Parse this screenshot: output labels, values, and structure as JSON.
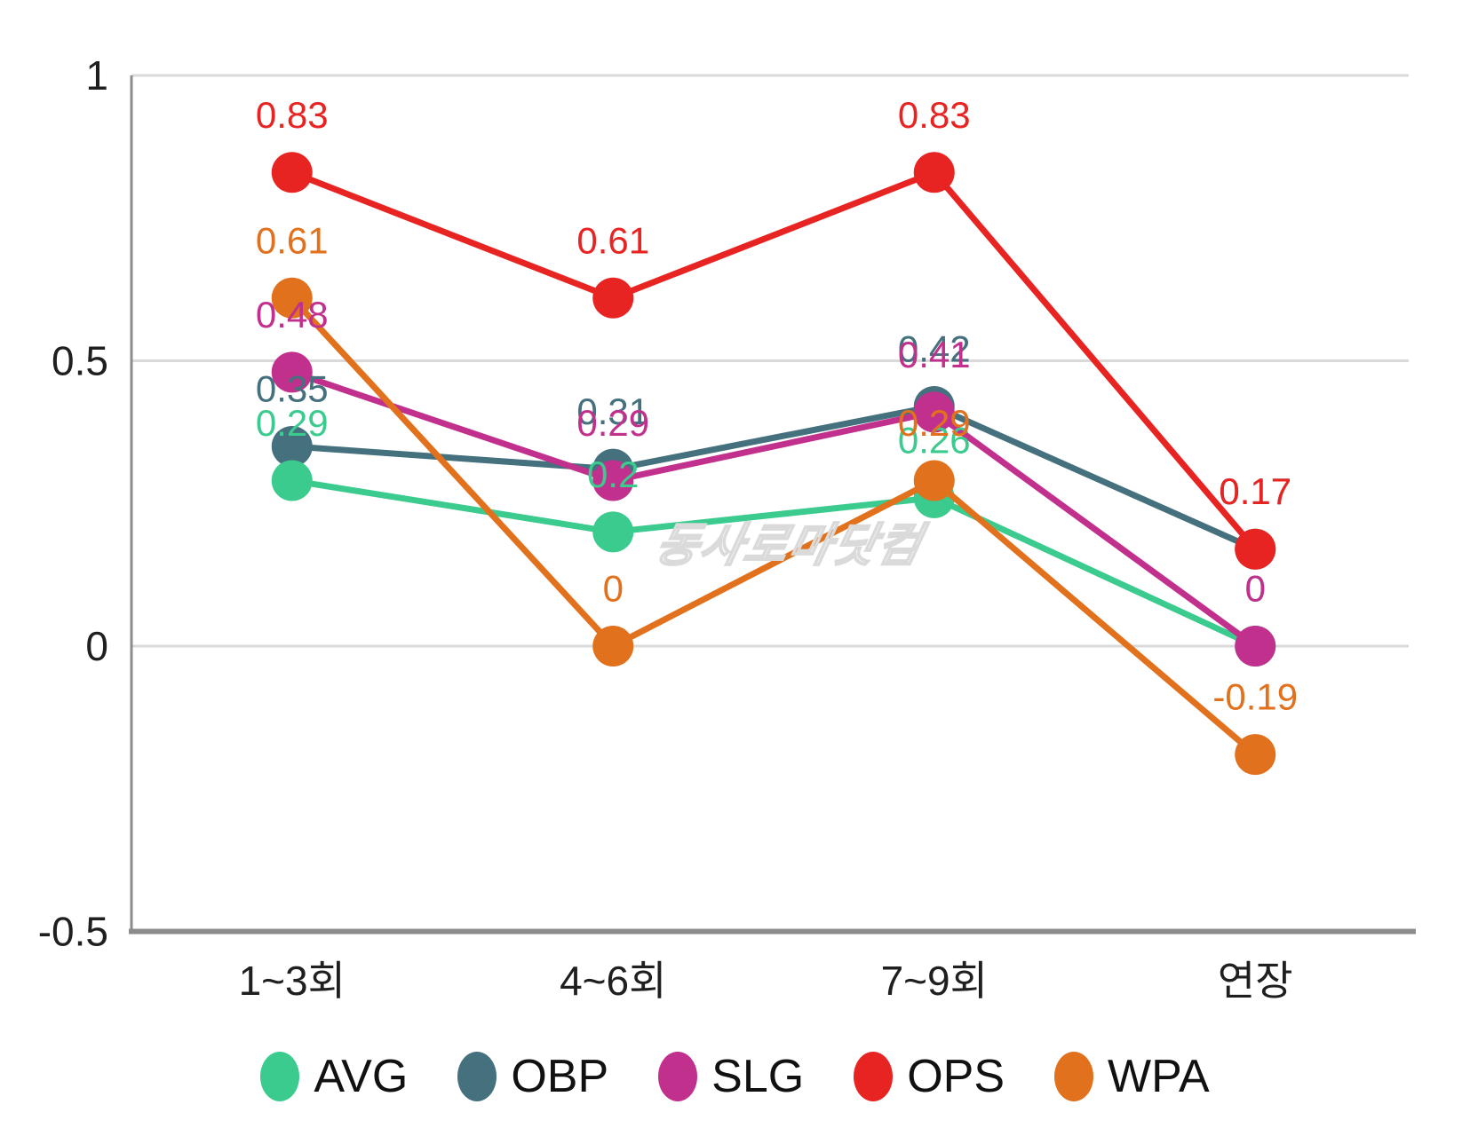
{
  "watermark": "동사로마닷컴",
  "chart_data": {
    "type": "line",
    "title": "",
    "xlabel": "",
    "ylabel": "",
    "categories": [
      "1~3회",
      "4~6회",
      "7~9회",
      "연장"
    ],
    "series": [
      {
        "name": "AVG",
        "color": "#3bcb8e",
        "values": [
          0.29,
          0.2,
          0.26,
          0
        ],
        "labels": [
          "0.29",
          "0.2",
          "0.26",
          "0"
        ]
      },
      {
        "name": "OBP",
        "color": "#45707d",
        "values": [
          0.35,
          0.31,
          0.42,
          0.17
        ],
        "labels": [
          "0.35",
          "0.31",
          "0.42",
          "0.17"
        ]
      },
      {
        "name": "SLG",
        "color": "#c2308d",
        "values": [
          0.48,
          0.29,
          0.41,
          0
        ],
        "labels": [
          "0.48",
          "0.29",
          "0.41",
          "0"
        ]
      },
      {
        "name": "OPS",
        "color": "#e82422",
        "values": [
          0.83,
          0.61,
          0.83,
          0.17
        ],
        "labels": [
          "0.83",
          "0.61",
          "0.83",
          "0.17"
        ]
      },
      {
        "name": "WPA",
        "color": "#e2711e",
        "values": [
          0.61,
          0,
          0.29,
          -0.19
        ],
        "labels": [
          "0.61",
          "0",
          "0.29",
          "-0.19"
        ]
      }
    ],
    "draw_order": [
      "OBP",
      "AVG",
      "SLG",
      "OPS",
      "WPA"
    ],
    "y_ticks": [
      {
        "label": "1",
        "value": 1
      },
      {
        "label": "0.5",
        "value": 0.5
      },
      {
        "label": "0",
        "value": 0
      },
      {
        "label": "-0.5",
        "value": -0.5
      }
    ],
    "ylim": [
      -0.5,
      1
    ],
    "grid": true,
    "legend_position": "bottom",
    "colors": {
      "gridline": "#dadada",
      "axis": "#8c8c8c",
      "text": "#1f1f1f"
    }
  }
}
